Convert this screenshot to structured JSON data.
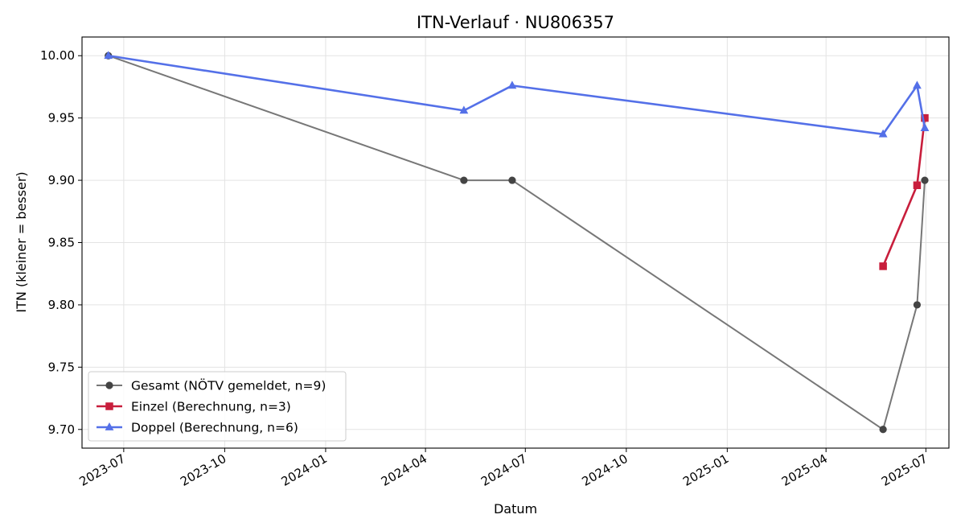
{
  "chart_data": {
    "type": "line",
    "title": "ITN-Verlauf · NU806357",
    "xlabel": "Datum",
    "ylabel": "ITN  (kleiner = besser)",
    "xlim": [
      "2023-05-24",
      "2025-07-22"
    ],
    "ylim": [
      9.685,
      10.015
    ],
    "x_ticks": [
      "2023-07",
      "2023-10",
      "2024-01",
      "2024-04",
      "2024-07",
      "2024-10",
      "2025-01",
      "2025-04",
      "2025-07"
    ],
    "y_ticks": [
      "9.70",
      "9.75",
      "9.80",
      "9.85",
      "9.90",
      "9.95",
      "10.00"
    ],
    "grid": true,
    "legend_position": "lower-left",
    "series": [
      {
        "name": "Gesamt (NÖTV gemeldet, n=9)",
        "color": "#777777",
        "marker_color": "#444444",
        "marker": "circle",
        "points": [
          {
            "x": "2023-06-17",
            "y": 10.0
          },
          {
            "x": "2024-05-06",
            "y": 9.9
          },
          {
            "x": "2024-06-19",
            "y": 9.9
          },
          {
            "x": "2025-05-23",
            "y": 9.7
          },
          {
            "x": "2025-06-23",
            "y": 9.8
          },
          {
            "x": "2025-06-30",
            "y": 9.9
          }
        ]
      },
      {
        "name": "Einzel (Berechnung, n=3)",
        "color": "#c81e3c",
        "marker": "square",
        "points": [
          {
            "x": "2025-05-23",
            "y": 9.831
          },
          {
            "x": "2025-06-23",
            "y": 9.896
          },
          {
            "x": "2025-06-30",
            "y": 9.95
          }
        ]
      },
      {
        "name": "Doppel (Berechnung, n=6)",
        "color": "#5470e8",
        "marker": "triangle",
        "points": [
          {
            "x": "2023-06-17",
            "y": 10.0
          },
          {
            "x": "2024-05-06",
            "y": 9.956
          },
          {
            "x": "2024-06-19",
            "y": 9.976
          },
          {
            "x": "2025-05-23",
            "y": 9.937
          },
          {
            "x": "2025-06-23",
            "y": 9.976
          },
          {
            "x": "2025-06-30",
            "y": 9.942
          }
        ]
      }
    ]
  }
}
